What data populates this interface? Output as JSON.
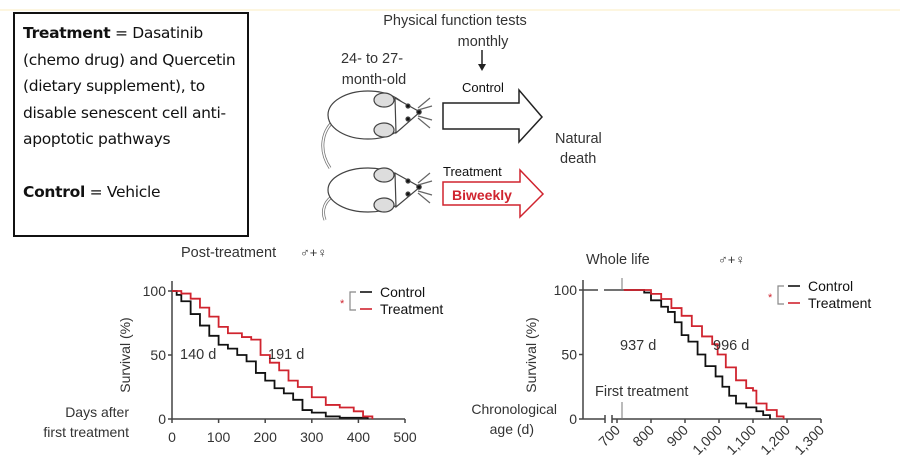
{
  "info_box": {
    "treatment_label": "Treatment",
    "treatment_text": " = Dasatinib (chemo drug) and Quercetin (dietary supplement), to disable senescent cell anti-apoptotic pathways",
    "control_label": "Control",
    "control_text": " = Vehicle"
  },
  "diagram": {
    "tests_label": "Physical function tests monthly",
    "tests_line1": "Physical function tests",
    "tests_line2": "monthly",
    "age_line1": "24- to 27-",
    "age_line2": "month-old",
    "control_arrow_label": "Control",
    "treatment_arrow_label": "Treatment",
    "treatment_arrow_text": "Biweekly",
    "outcome_line1": "Natural",
    "outcome_line2": "death"
  },
  "colors": {
    "control": "#111111",
    "treatment": "#d0242f",
    "text": "#333333"
  },
  "chart_data": [
    {
      "type": "line",
      "title": "Post-treatment",
      "subtitle": "♂+♀",
      "xlabel_line1": "Days after",
      "xlabel_line2": "first treatment",
      "ylabel": "Survival (%)",
      "xlim": [
        0,
        500
      ],
      "ylim": [
        0,
        100
      ],
      "xticks": [
        "0",
        "100",
        "200",
        "300",
        "400",
        "500"
      ],
      "xtick_values": [
        0,
        100,
        200,
        300,
        400,
        500
      ],
      "yticks": [
        "0",
        "50",
        "100"
      ],
      "ytick_values": [
        0,
        50,
        100
      ],
      "legend": {
        "position": "top-right",
        "significance": "*",
        "entries": [
          "Control",
          "Treatment"
        ]
      },
      "annotations": [
        {
          "text": "140 d",
          "series": "Control"
        },
        {
          "text": "191 d",
          "series": "Treatment"
        }
      ],
      "series": [
        {
          "name": "Control",
          "color": "#111111",
          "x": [
            0,
            10,
            20,
            40,
            60,
            80,
            100,
            120,
            140,
            160,
            180,
            200,
            220,
            240,
            260,
            280,
            300,
            330,
            360,
            400,
            420
          ],
          "y": [
            100,
            97,
            92,
            82,
            73,
            65,
            58,
            55,
            50,
            45,
            36,
            30,
            24,
            20,
            15,
            7,
            5,
            2,
            1,
            1,
            0
          ]
        },
        {
          "name": "Treatment",
          "color": "#d0242f",
          "x": [
            0,
            20,
            40,
            60,
            80,
            100,
            120,
            150,
            170,
            190,
            210,
            230,
            250,
            270,
            300,
            330,
            360,
            390,
            410,
            430
          ],
          "y": [
            100,
            98,
            94,
            87,
            80,
            72,
            67,
            64,
            62,
            50,
            44,
            38,
            30,
            25,
            17,
            11,
            9,
            6,
            2,
            0
          ]
        }
      ]
    },
    {
      "type": "line",
      "title": "Whole life",
      "subtitle": "♂+♀",
      "xlabel_line1": "Chronological",
      "xlabel_line2": "age (d)",
      "ylabel": "Survival (%)",
      "xlim": [
        620,
        1300
      ],
      "ylim": [
        0,
        100
      ],
      "xticks": [
        "700",
        "800",
        "900",
        "1,000",
        "1,100",
        "1,200",
        "1,300"
      ],
      "xtick_values": [
        700,
        800,
        900,
        1000,
        1100,
        1200,
        1300
      ],
      "yticks": [
        "0",
        "50",
        "100"
      ],
      "ytick_values": [
        0,
        50,
        100
      ],
      "legend": {
        "position": "top-right",
        "significance": "*",
        "entries": [
          "Control",
          "Treatment"
        ]
      },
      "annotations": [
        {
          "text": "937 d",
          "series": "Control"
        },
        {
          "text": "996 d",
          "series": "Treatment"
        },
        {
          "text": "First treatment",
          "series": ""
        }
      ],
      "series": [
        {
          "name": "Control",
          "color": "#111111",
          "x": [
            720,
            760,
            780,
            800,
            830,
            850,
            870,
            890,
            910,
            937,
            960,
            990,
            1010,
            1030,
            1050,
            1080,
            1110,
            1130,
            1150
          ],
          "y": [
            100,
            100,
            98,
            92,
            87,
            83,
            75,
            65,
            60,
            50,
            41,
            33,
            25,
            18,
            12,
            9,
            6,
            3,
            0
          ]
        },
        {
          "name": "Treatment",
          "color": "#d0242f",
          "x": [
            720,
            780,
            800,
            830,
            860,
            890,
            920,
            950,
            980,
            996,
            1020,
            1050,
            1080,
            1100,
            1110,
            1140,
            1170,
            1190
          ],
          "y": [
            100,
            100,
            97,
            93,
            86,
            80,
            72,
            64,
            58,
            50,
            40,
            30,
            24,
            22,
            12,
            7,
            2,
            0
          ]
        }
      ]
    }
  ]
}
